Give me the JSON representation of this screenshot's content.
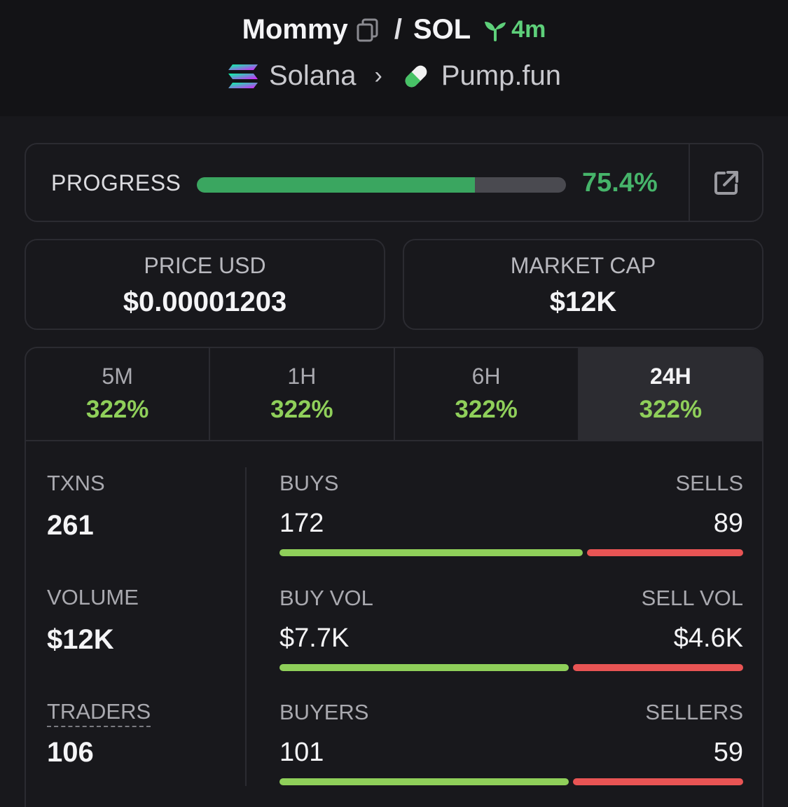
{
  "header": {
    "token": "Mommy",
    "separator": "/",
    "quote": "SOL",
    "age": "4m",
    "chain": "Solana",
    "dex": "Pump.fun"
  },
  "progress": {
    "label": "PROGRESS",
    "percent_text": "75.4%",
    "fraction": 0.754
  },
  "price": {
    "label": "PRICE USD",
    "value": "$0.00001203"
  },
  "market_cap": {
    "label": "MARKET CAP",
    "value": "$12K"
  },
  "tabs": [
    {
      "label": "5M",
      "change": "322%"
    },
    {
      "label": "1H",
      "change": "322%"
    },
    {
      "label": "6H",
      "change": "322%"
    },
    {
      "label": "24H",
      "change": "322%",
      "active": true
    }
  ],
  "metrics": {
    "txns": {
      "label": "TXNS",
      "value": "261"
    },
    "volume": {
      "label": "VOLUME",
      "value": "$12K"
    },
    "traders": {
      "label": "TRADERS",
      "value": "106"
    }
  },
  "splits": {
    "txns": {
      "left_label": "BUYS",
      "right_label": "SELLS",
      "left_value": "172",
      "right_value": "89",
      "buy_share": 0.66
    },
    "volume": {
      "left_label": "BUY VOL",
      "right_label": "SELL VOL",
      "left_value": "$7.7K",
      "right_value": "$4.6K",
      "buy_share": 0.63
    },
    "traders": {
      "left_label": "BUYERS",
      "right_label": "SELLERS",
      "left_value": "101",
      "right_value": "59",
      "buy_share": 0.63
    }
  },
  "colors": {
    "buy": "#8fcf5a",
    "sell": "#e85454",
    "progress": "#3aa660"
  },
  "icons": {
    "copy": "copy-icon",
    "age": "sprout-icon",
    "chain": "solana-icon",
    "dex": "pill-icon",
    "external": "external-link-icon"
  }
}
